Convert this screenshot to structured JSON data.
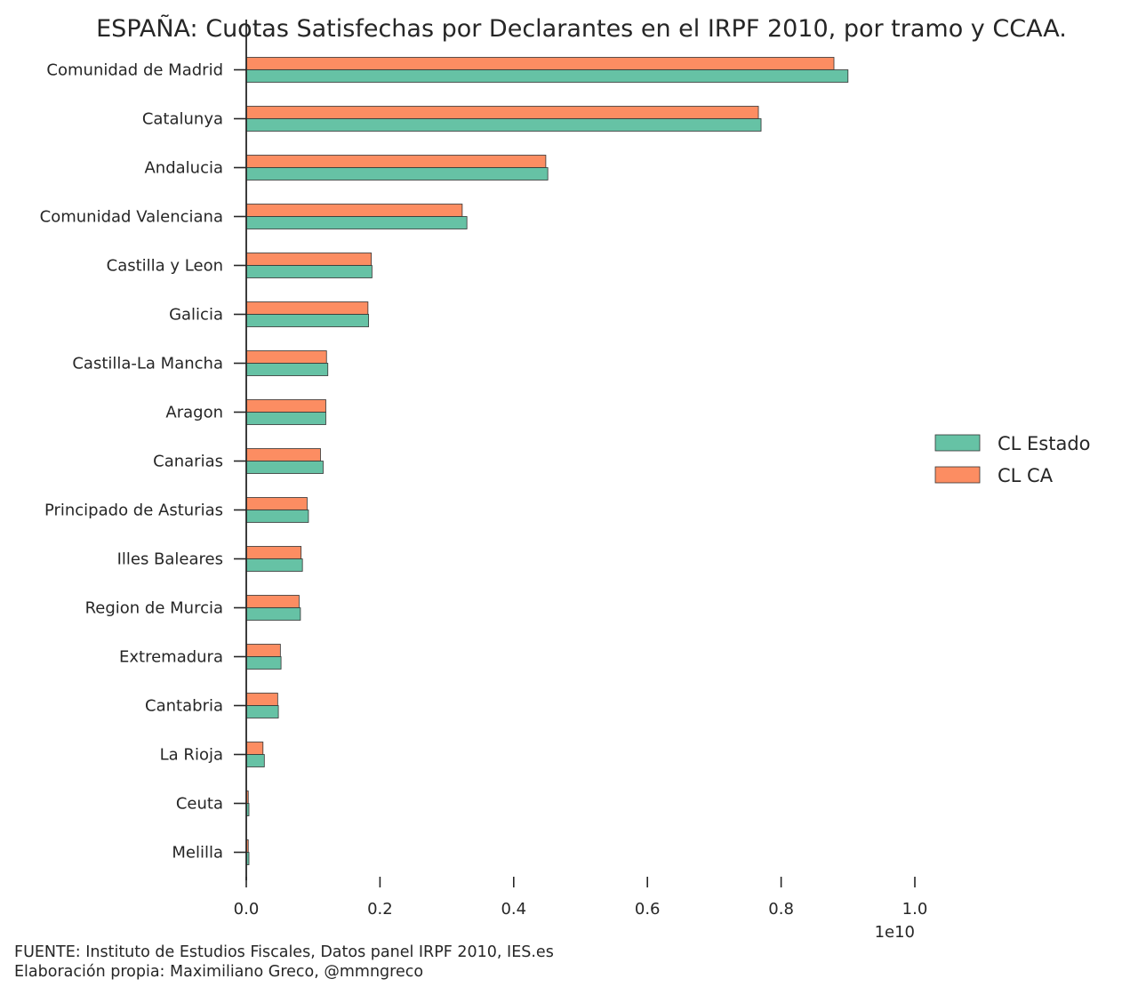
{
  "chart_data": {
    "type": "bar",
    "orientation": "horizontal",
    "title": "ESPAÑA: Cuotas Satisfechas por Declarantes en el IRPF 2010, por tramo y CCAA.",
    "xlabel": "",
    "ylabel": "",
    "x_scale_label": "1e10",
    "xlim": [
      0,
      1.0
    ],
    "x_ticks": [
      "0.0",
      "0.2",
      "0.4",
      "0.6",
      "0.8",
      "1.0"
    ],
    "grid": false,
    "legend_position": "right",
    "categories": [
      "Comunidad de Madrid",
      "Catalunya",
      "Andalucia",
      "Comunidad Valenciana",
      "Castilla y Leon",
      "Galicia",
      "Castilla-La Mancha",
      "Aragon",
      "Canarias",
      "Principado de Asturias",
      "Illes Baleares",
      "Region de Murcia",
      "Extremadura",
      "Cantabria",
      "La Rioja",
      "Ceuta",
      "Melilla"
    ],
    "series": [
      {
        "name": "CL Estado",
        "color": "#66c2a5",
        "values": [
          0.9,
          0.77,
          0.451,
          0.33,
          0.188,
          0.183,
          0.122,
          0.119,
          0.115,
          0.093,
          0.084,
          0.081,
          0.052,
          0.048,
          0.027,
          0.004,
          0.004
        ]
      },
      {
        "name": "CL CA",
        "color": "#fc8d62",
        "values": [
          0.879,
          0.766,
          0.448,
          0.323,
          0.187,
          0.182,
          0.12,
          0.119,
          0.111,
          0.091,
          0.082,
          0.079,
          0.051,
          0.047,
          0.025,
          0.003,
          0.003
        ]
      }
    ]
  },
  "footer": {
    "source": "FUENTE: Instituto de Estudios Fiscales, Datos panel IRPF 2010, IES.es",
    "author": "Elaboración propia: Maximiliano Greco, @mmngreco"
  }
}
